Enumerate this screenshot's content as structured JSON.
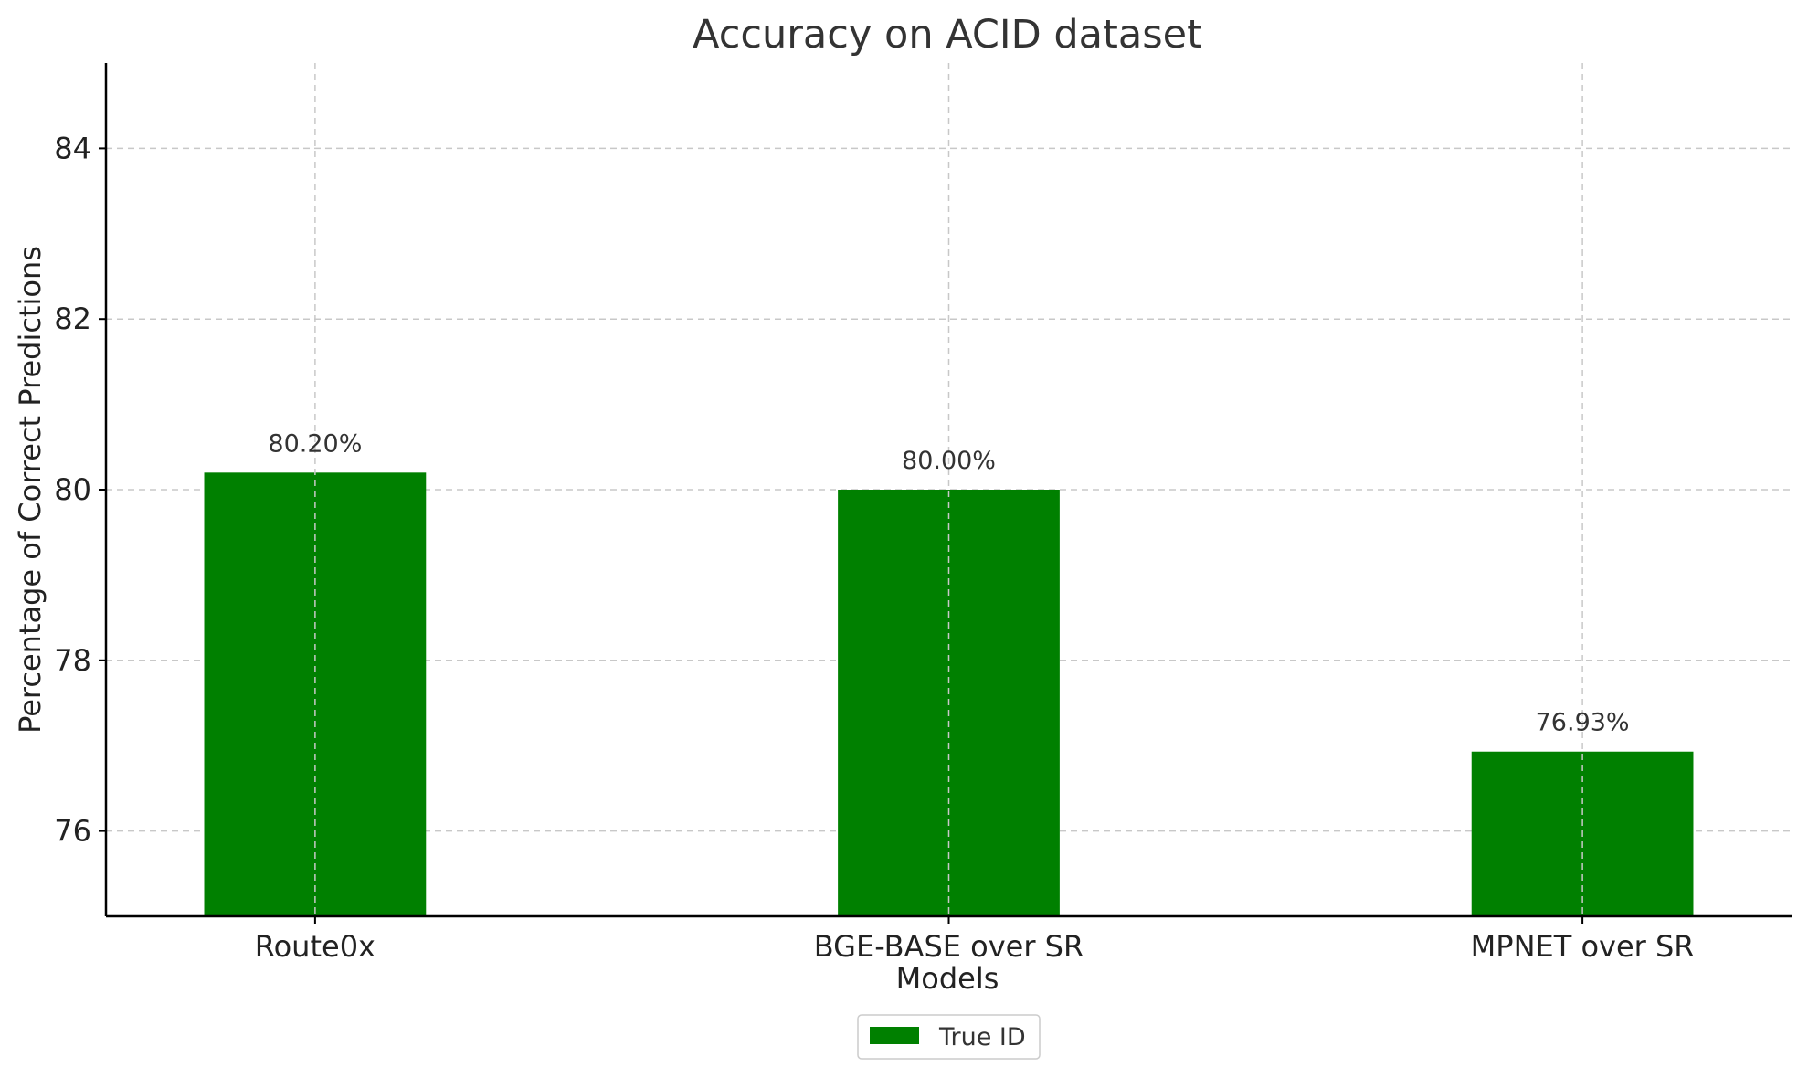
{
  "chart_data": {
    "type": "bar",
    "title": "Accuracy on ACID dataset",
    "xlabel": "Models",
    "ylabel": "Percentage of Correct Predictions",
    "categories": [
      "Route0x",
      "BGE-BASE over SR",
      "MPNET over SR"
    ],
    "series": [
      {
        "name": "True ID",
        "values": [
          80.2,
          80.0,
          76.93
        ],
        "color": "#008000",
        "data_labels": [
          "80.20%",
          "80.00%",
          "76.93%"
        ]
      }
    ],
    "ylim": [
      75,
      85
    ],
    "yticks": [
      76,
      78,
      80,
      82,
      84
    ],
    "grid": true,
    "legend": "bottom-center"
  }
}
